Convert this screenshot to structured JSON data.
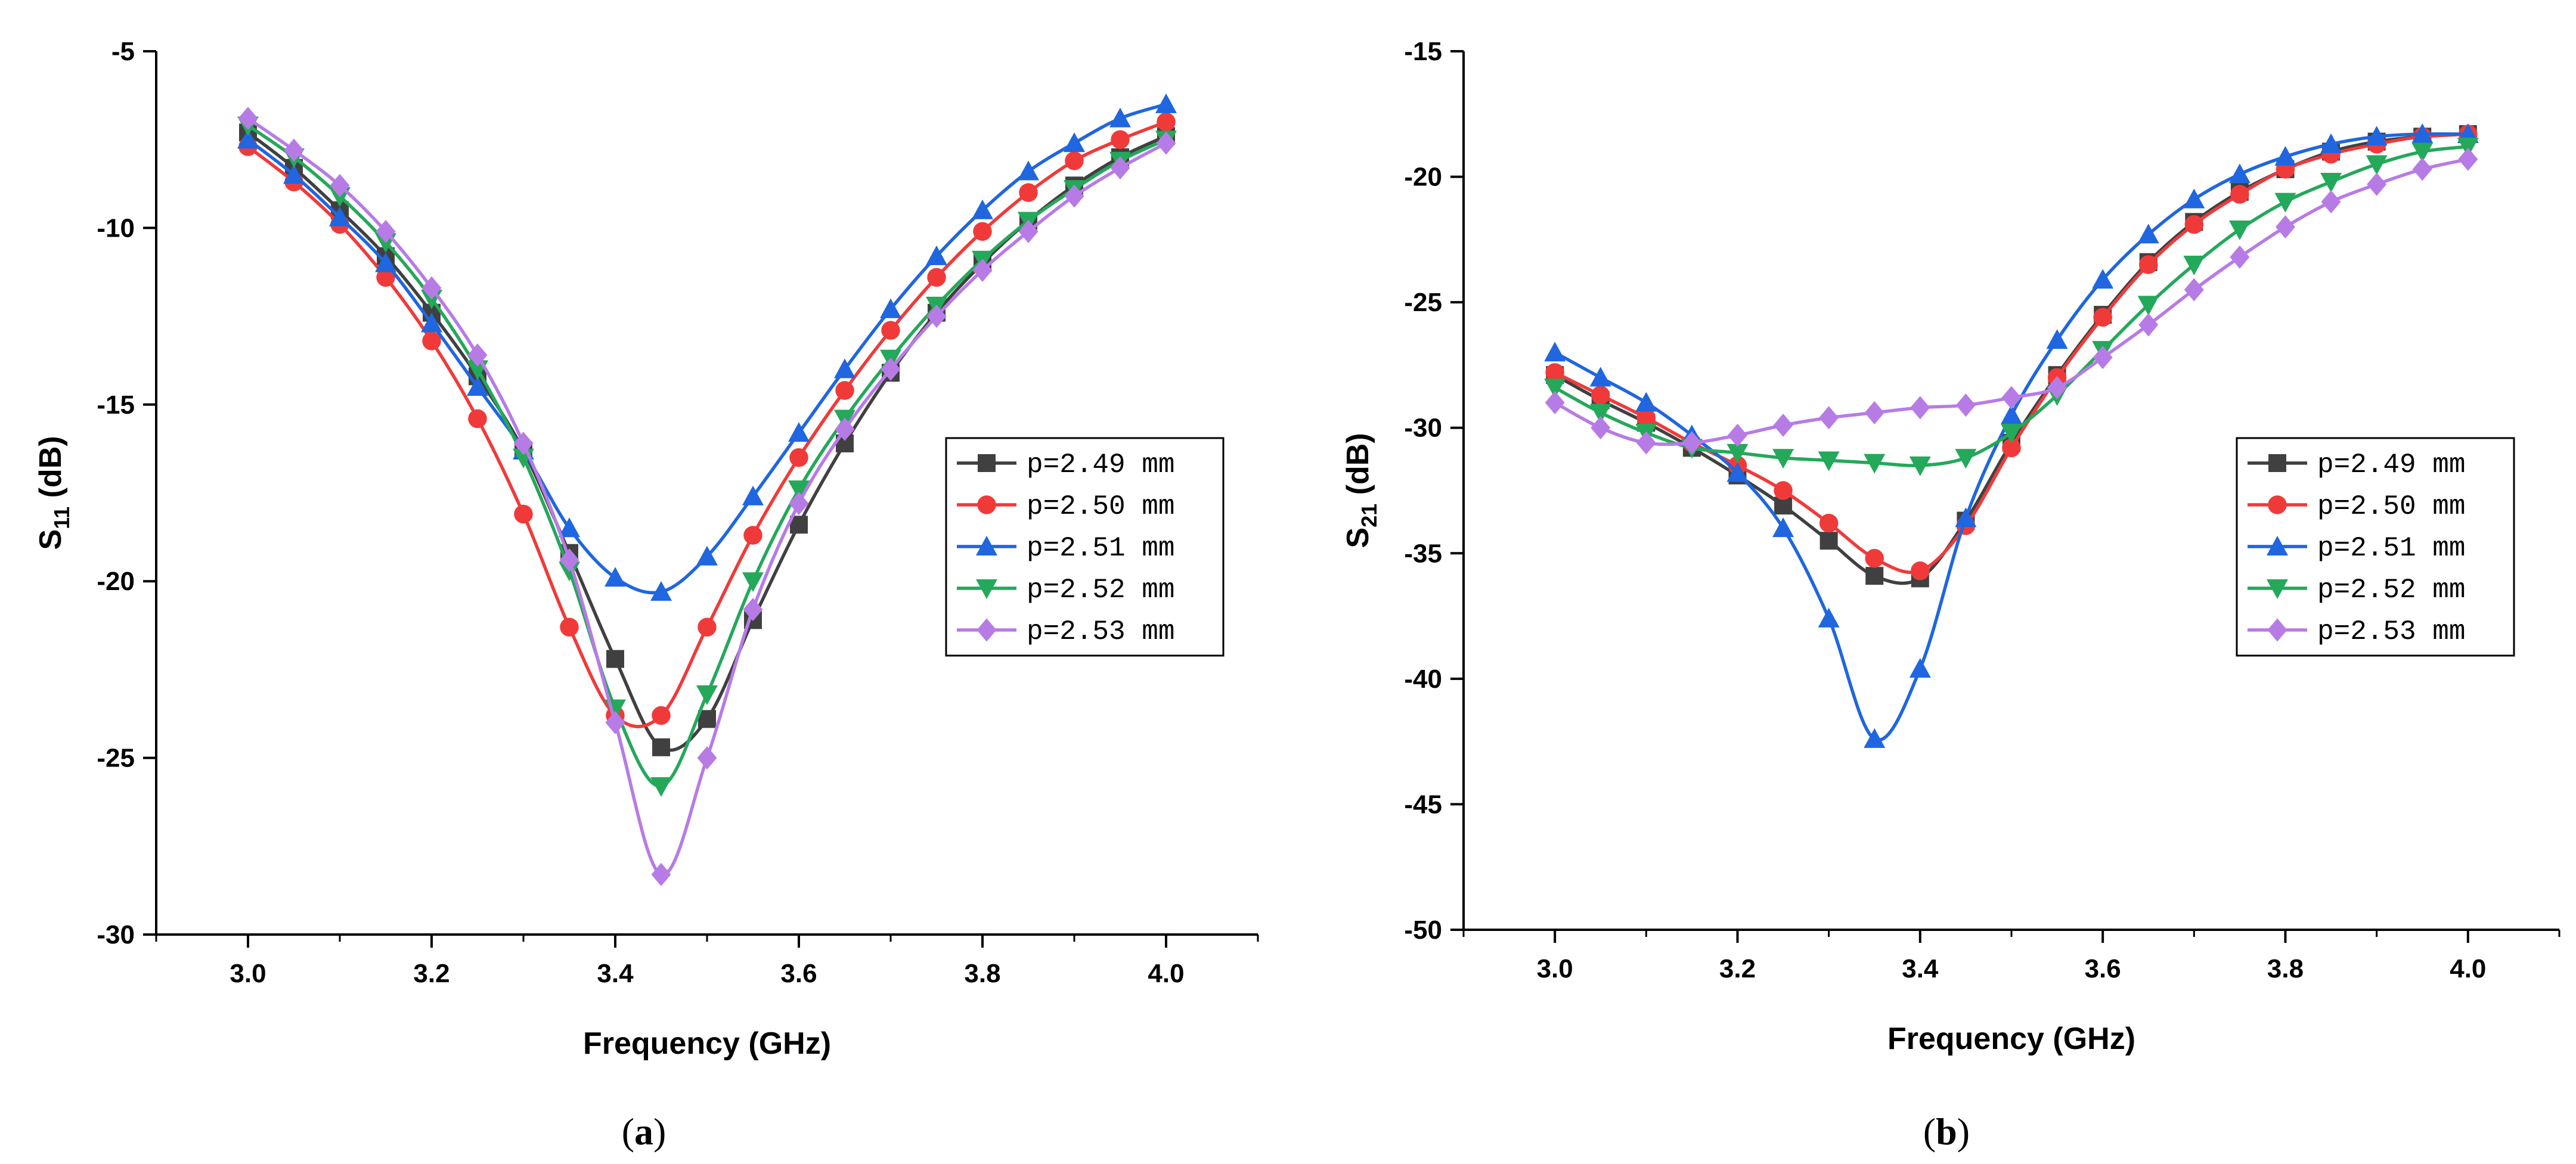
{
  "chart_data": [
    {
      "type": "line",
      "panel_label": "(a)",
      "xlabel": "Frequency (GHz)",
      "ylabel": "S11 (dB)",
      "ylabel_main": "S",
      "ylabel_sub": "11",
      "ylabel_unit": " (dB)",
      "xlim": [
        2.9,
        4.1
      ],
      "ylim": [
        -30,
        -5
      ],
      "x_ticks": [
        3.0,
        3.2,
        3.4,
        3.6,
        3.8,
        4.0
      ],
      "x_tick_labels": [
        "3.0",
        "3.2",
        "3.4",
        "3.6",
        "3.8",
        "4.0"
      ],
      "y_ticks": [
        -30,
        -25,
        -20,
        -15,
        -10,
        -5
      ],
      "y_tick_labels": [
        "-30",
        "-25",
        "-20",
        "-15",
        "-10",
        "-5"
      ],
      "legend_position": "center-right",
      "x": [
        3.0,
        3.05,
        3.1,
        3.15,
        3.2,
        3.25,
        3.3,
        3.35,
        3.4,
        3.45,
        3.5,
        3.55,
        3.6,
        3.65,
        3.7,
        3.75,
        3.8,
        3.85,
        3.9,
        3.95,
        4.0
      ],
      "series": [
        {
          "name": "p=2.49 mm",
          "color": "#404040",
          "marker": "square",
          "values": [
            -7.3,
            -8.3,
            -9.5,
            -10.8,
            -12.4,
            -14.2,
            -16.3,
            -19.2,
            -22.2,
            -24.7,
            -23.9,
            -21.1,
            -18.4,
            -16.1,
            -14.1,
            -12.4,
            -11.0,
            -9.8,
            -8.8,
            -8.0,
            -7.4
          ]
        },
        {
          "name": "p=2.50 mm",
          "color": "#f03a3a",
          "marker": "circle",
          "values": [
            -7.7,
            -8.7,
            -9.9,
            -11.4,
            -13.2,
            -15.4,
            -18.1,
            -21.3,
            -23.8,
            -23.8,
            -21.3,
            -18.7,
            -16.5,
            -14.6,
            -12.9,
            -11.4,
            -10.1,
            -9.0,
            -8.1,
            -7.5,
            -7.0
          ]
        },
        {
          "name": "p=2.51 mm",
          "color": "#1f66e0",
          "marker": "triangle-up",
          "values": [
            -7.5,
            -8.5,
            -9.7,
            -11.0,
            -12.7,
            -14.5,
            -16.3,
            -18.5,
            -19.9,
            -20.3,
            -19.3,
            -17.6,
            -15.8,
            -14.0,
            -12.3,
            -10.8,
            -9.5,
            -8.4,
            -7.6,
            -6.9,
            -6.5
          ]
        },
        {
          "name": "p=2.52 mm",
          "color": "#24a85a",
          "marker": "triangle-down",
          "values": [
            -7.1,
            -8.0,
            -9.1,
            -10.4,
            -12.0,
            -14.0,
            -16.5,
            -19.7,
            -23.6,
            -25.8,
            -23.2,
            -20.0,
            -17.4,
            -15.4,
            -13.7,
            -12.2,
            -10.9,
            -9.8,
            -8.9,
            -8.1,
            -7.5
          ]
        },
        {
          "name": "p=2.53 mm",
          "color": "#b77be6",
          "marker": "diamond",
          "values": [
            -6.9,
            -7.8,
            -8.8,
            -10.1,
            -11.7,
            -13.6,
            -16.1,
            -19.4,
            -24.0,
            -28.3,
            -25.0,
            -20.8,
            -17.8,
            -15.7,
            -14.0,
            -12.5,
            -11.2,
            -10.1,
            -9.1,
            -8.3,
            -7.6
          ]
        }
      ]
    },
    {
      "type": "line",
      "panel_label": "(b)",
      "xlabel": "Frequency (GHz)",
      "ylabel": "S21 (dB)",
      "ylabel_main": "S",
      "ylabel_sub": "21",
      "ylabel_unit": " (dB)",
      "xlim": [
        2.9,
        4.1
      ],
      "ylim": [
        -50,
        -15
      ],
      "x_ticks": [
        3.0,
        3.2,
        3.4,
        3.6,
        3.8,
        4.0
      ],
      "x_tick_labels": [
        "3.0",
        "3.2",
        "3.4",
        "3.6",
        "3.8",
        "4.0"
      ],
      "y_ticks": [
        -50,
        -45,
        -40,
        -35,
        -30,
        -25,
        -20,
        -15
      ],
      "y_tick_labels": [
        "-50",
        "-45",
        "-40",
        "-35",
        "-30",
        "-25",
        "-20",
        "-15"
      ],
      "legend_position": "center-right",
      "x": [
        3.0,
        3.05,
        3.1,
        3.15,
        3.2,
        3.25,
        3.3,
        3.35,
        3.4,
        3.45,
        3.5,
        3.55,
        3.6,
        3.65,
        3.7,
        3.75,
        3.8,
        3.85,
        3.9,
        3.95,
        4.0
      ],
      "series": [
        {
          "name": "p=2.49 mm",
          "color": "#404040",
          "marker": "square",
          "values": [
            -27.9,
            -28.9,
            -29.8,
            -30.8,
            -31.9,
            -33.1,
            -34.5,
            -35.9,
            -36.0,
            -33.7,
            -30.6,
            -27.9,
            -25.5,
            -23.4,
            -21.8,
            -20.6,
            -19.7,
            -19.0,
            -18.6,
            -18.4,
            -18.3
          ]
        },
        {
          "name": "p=2.50 mm",
          "color": "#f03a3a",
          "marker": "circle",
          "values": [
            -27.8,
            -28.7,
            -29.6,
            -30.6,
            -31.5,
            -32.5,
            -33.8,
            -35.2,
            -35.7,
            -33.9,
            -30.8,
            -28.0,
            -25.6,
            -23.5,
            -21.9,
            -20.7,
            -19.7,
            -19.1,
            -18.7,
            -18.4,
            -18.3
          ]
        },
        {
          "name": "p=2.51 mm",
          "color": "#1f66e0",
          "marker": "triangle-up",
          "values": [
            -27.0,
            -28.0,
            -29.0,
            -30.3,
            -31.8,
            -34.0,
            -37.6,
            -42.4,
            -39.6,
            -33.6,
            -29.5,
            -26.5,
            -24.1,
            -22.3,
            -20.9,
            -19.9,
            -19.2,
            -18.7,
            -18.4,
            -18.3,
            -18.3
          ]
        },
        {
          "name": "p=2.52 mm",
          "color": "#24a85a",
          "marker": "triangle-down",
          "values": [
            -28.4,
            -29.4,
            -30.2,
            -30.8,
            -31.0,
            -31.2,
            -31.3,
            -31.4,
            -31.5,
            -31.2,
            -30.2,
            -28.7,
            -26.9,
            -25.1,
            -23.5,
            -22.1,
            -21.0,
            -20.2,
            -19.5,
            -19.0,
            -18.8
          ]
        },
        {
          "name": "p=2.53 mm",
          "color": "#b77be6",
          "marker": "diamond",
          "values": [
            -29.0,
            -30.0,
            -30.6,
            -30.6,
            -30.3,
            -29.9,
            -29.6,
            -29.4,
            -29.2,
            -29.1,
            -28.8,
            -28.4,
            -27.2,
            -25.9,
            -24.5,
            -23.2,
            -22.0,
            -21.0,
            -20.3,
            -19.7,
            -19.3
          ]
        }
      ]
    }
  ]
}
